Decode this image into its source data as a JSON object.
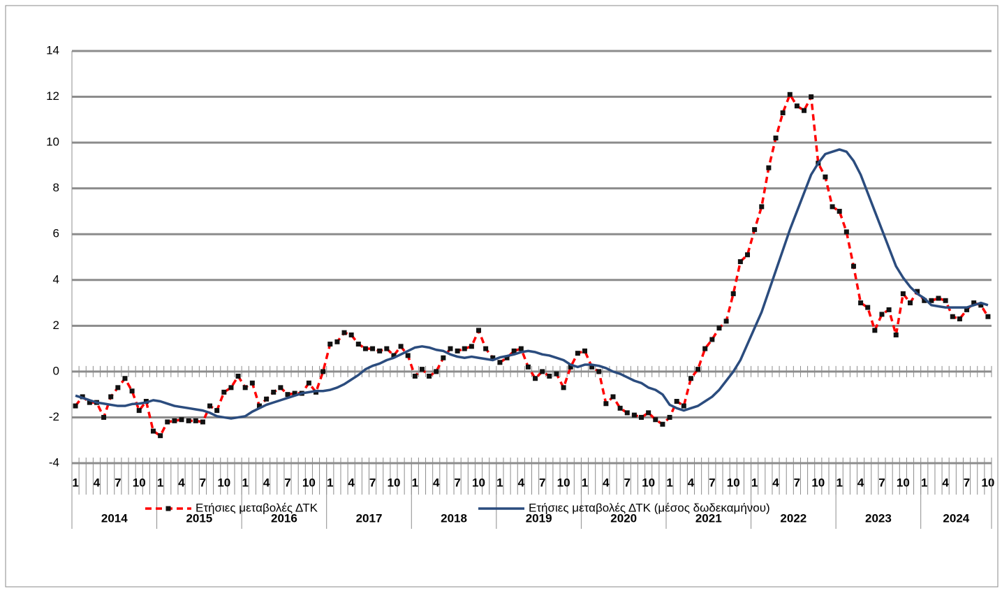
{
  "chart_data": {
    "type": "line",
    "categories": [
      "1",
      null,
      null,
      "4",
      null,
      null,
      "7",
      null,
      null,
      "10",
      null,
      null,
      "1",
      null,
      null,
      "4",
      null,
      null,
      "7",
      null,
      null,
      "10",
      null,
      null,
      "1",
      null,
      null,
      "4",
      null,
      null,
      "7",
      null,
      null,
      "10",
      null,
      null,
      "1",
      null,
      null,
      "4",
      null,
      null,
      "7",
      null,
      null,
      "10",
      null,
      null,
      "1",
      null,
      null,
      "4",
      null,
      null,
      "7",
      null,
      null,
      "10",
      null,
      null,
      "1",
      null,
      null,
      "4",
      null,
      null,
      "7",
      null,
      null,
      "10",
      null,
      null,
      "1",
      null,
      null,
      "4",
      null,
      null,
      "7",
      null,
      null,
      "10",
      null,
      null,
      "1",
      null,
      null,
      "4",
      null,
      null,
      "7",
      null,
      null,
      "10",
      null,
      null,
      "1",
      null,
      null,
      "4",
      null,
      null,
      "7",
      null,
      null,
      "10",
      null,
      null,
      "1",
      null,
      null,
      "4",
      null,
      null,
      "7",
      null,
      null,
      "10",
      null,
      null,
      "1",
      null,
      null,
      "4",
      null,
      null,
      "7",
      null,
      null,
      "10"
    ],
    "groups": [
      "2014",
      "2015",
      "2016",
      "2017",
      "2018",
      "2019",
      "2020",
      "2021",
      "2022",
      "2023",
      "2024"
    ],
    "series": [
      {
        "name": "Ετήσιες μεταβολές ΔΤΚ",
        "color": "#ff0000",
        "dashed": true,
        "markers": true,
        "values": [
          -1.5,
          -1.1,
          -1.35,
          -1.35,
          -2.0,
          -1.1,
          -0.7,
          -0.3,
          -0.85,
          -1.7,
          -1.3,
          -2.6,
          -2.8,
          -2.2,
          -2.15,
          -2.1,
          -2.15,
          -2.15,
          -2.2,
          -1.5,
          -1.7,
          -0.9,
          -0.7,
          -0.2,
          -0.7,
          -0.5,
          -1.5,
          -1.2,
          -0.9,
          -0.7,
          -1.0,
          -0.95,
          -0.95,
          -0.5,
          -0.9,
          0.0,
          1.2,
          1.3,
          1.7,
          1.6,
          1.2,
          1.0,
          1.0,
          0.9,
          1.0,
          0.7,
          1.1,
          0.7,
          -0.2,
          0.1,
          -0.2,
          0.0,
          0.6,
          1.0,
          0.9,
          1.0,
          1.1,
          1.8,
          1.0,
          0.6,
          0.4,
          0.6,
          0.9,
          1.0,
          0.2,
          -0.3,
          0.0,
          -0.2,
          -0.1,
          -0.7,
          0.2,
          0.8,
          0.9,
          0.2,
          0.0,
          -1.4,
          -1.1,
          -1.6,
          -1.8,
          -1.9,
          -2.0,
          -1.8,
          -2.1,
          -2.3,
          -2.0,
          -1.3,
          -1.5,
          -0.3,
          0.1,
          1.0,
          1.4,
          1.9,
          2.2,
          3.4,
          4.8,
          5.1,
          6.2,
          7.2,
          8.9,
          10.2,
          11.3,
          12.1,
          11.6,
          11.4,
          12.0,
          9.1,
          8.5,
          7.2,
          7.0,
          6.1,
          4.6,
          3.0,
          2.8,
          1.8,
          2.5,
          2.7,
          1.6,
          3.4,
          3.0,
          3.5,
          3.1,
          3.1,
          3.2,
          3.1,
          2.4,
          2.3,
          2.7,
          3.0,
          2.9,
          2.4
        ]
      },
      {
        "name": "Ετήσιες μεταβολές ΔΤΚ (μέσος δωδεκαμήνου)",
        "color": "#2b4c7e",
        "dashed": false,
        "markers": false,
        "values": [
          -1.05,
          -1.15,
          -1.25,
          -1.35,
          -1.4,
          -1.45,
          -1.5,
          -1.5,
          -1.42,
          -1.4,
          -1.35,
          -1.25,
          -1.3,
          -1.4,
          -1.5,
          -1.55,
          -1.6,
          -1.65,
          -1.7,
          -1.8,
          -1.95,
          -2.0,
          -2.05,
          -2.0,
          -1.95,
          -1.75,
          -1.6,
          -1.45,
          -1.35,
          -1.25,
          -1.15,
          -1.05,
          -0.95,
          -0.9,
          -0.85,
          -0.85,
          -0.8,
          -0.7,
          -0.55,
          -0.35,
          -0.15,
          0.1,
          0.25,
          0.35,
          0.5,
          0.6,
          0.75,
          0.9,
          1.05,
          1.1,
          1.05,
          0.95,
          0.9,
          0.75,
          0.65,
          0.6,
          0.65,
          0.6,
          0.55,
          0.5,
          0.62,
          0.68,
          0.75,
          0.85,
          0.9,
          0.85,
          0.75,
          0.7,
          0.6,
          0.5,
          0.3,
          0.2,
          0.3,
          0.3,
          0.25,
          0.15,
          0.0,
          -0.1,
          -0.25,
          -0.4,
          -0.5,
          -0.7,
          -0.8,
          -1.0,
          -1.45,
          -1.6,
          -1.7,
          -1.6,
          -1.5,
          -1.3,
          -1.1,
          -0.8,
          -0.4,
          0.0,
          0.5,
          1.2,
          1.9,
          2.6,
          3.5,
          4.4,
          5.3,
          6.2,
          7.0,
          7.8,
          8.6,
          9.1,
          9.5,
          9.6,
          9.7,
          9.6,
          9.2,
          8.6,
          7.8,
          7.0,
          6.2,
          5.4,
          4.6,
          4.1,
          3.7,
          3.4,
          3.2,
          2.9,
          2.85,
          2.8,
          2.8,
          2.8,
          2.8,
          2.9,
          3.0,
          2.9
        ]
      }
    ],
    "ylim": [
      -4,
      14
    ],
    "yticks": [
      -4,
      -2,
      0,
      2,
      4,
      6,
      8,
      10,
      12,
      14
    ],
    "grid": true,
    "legend": "bottom"
  }
}
